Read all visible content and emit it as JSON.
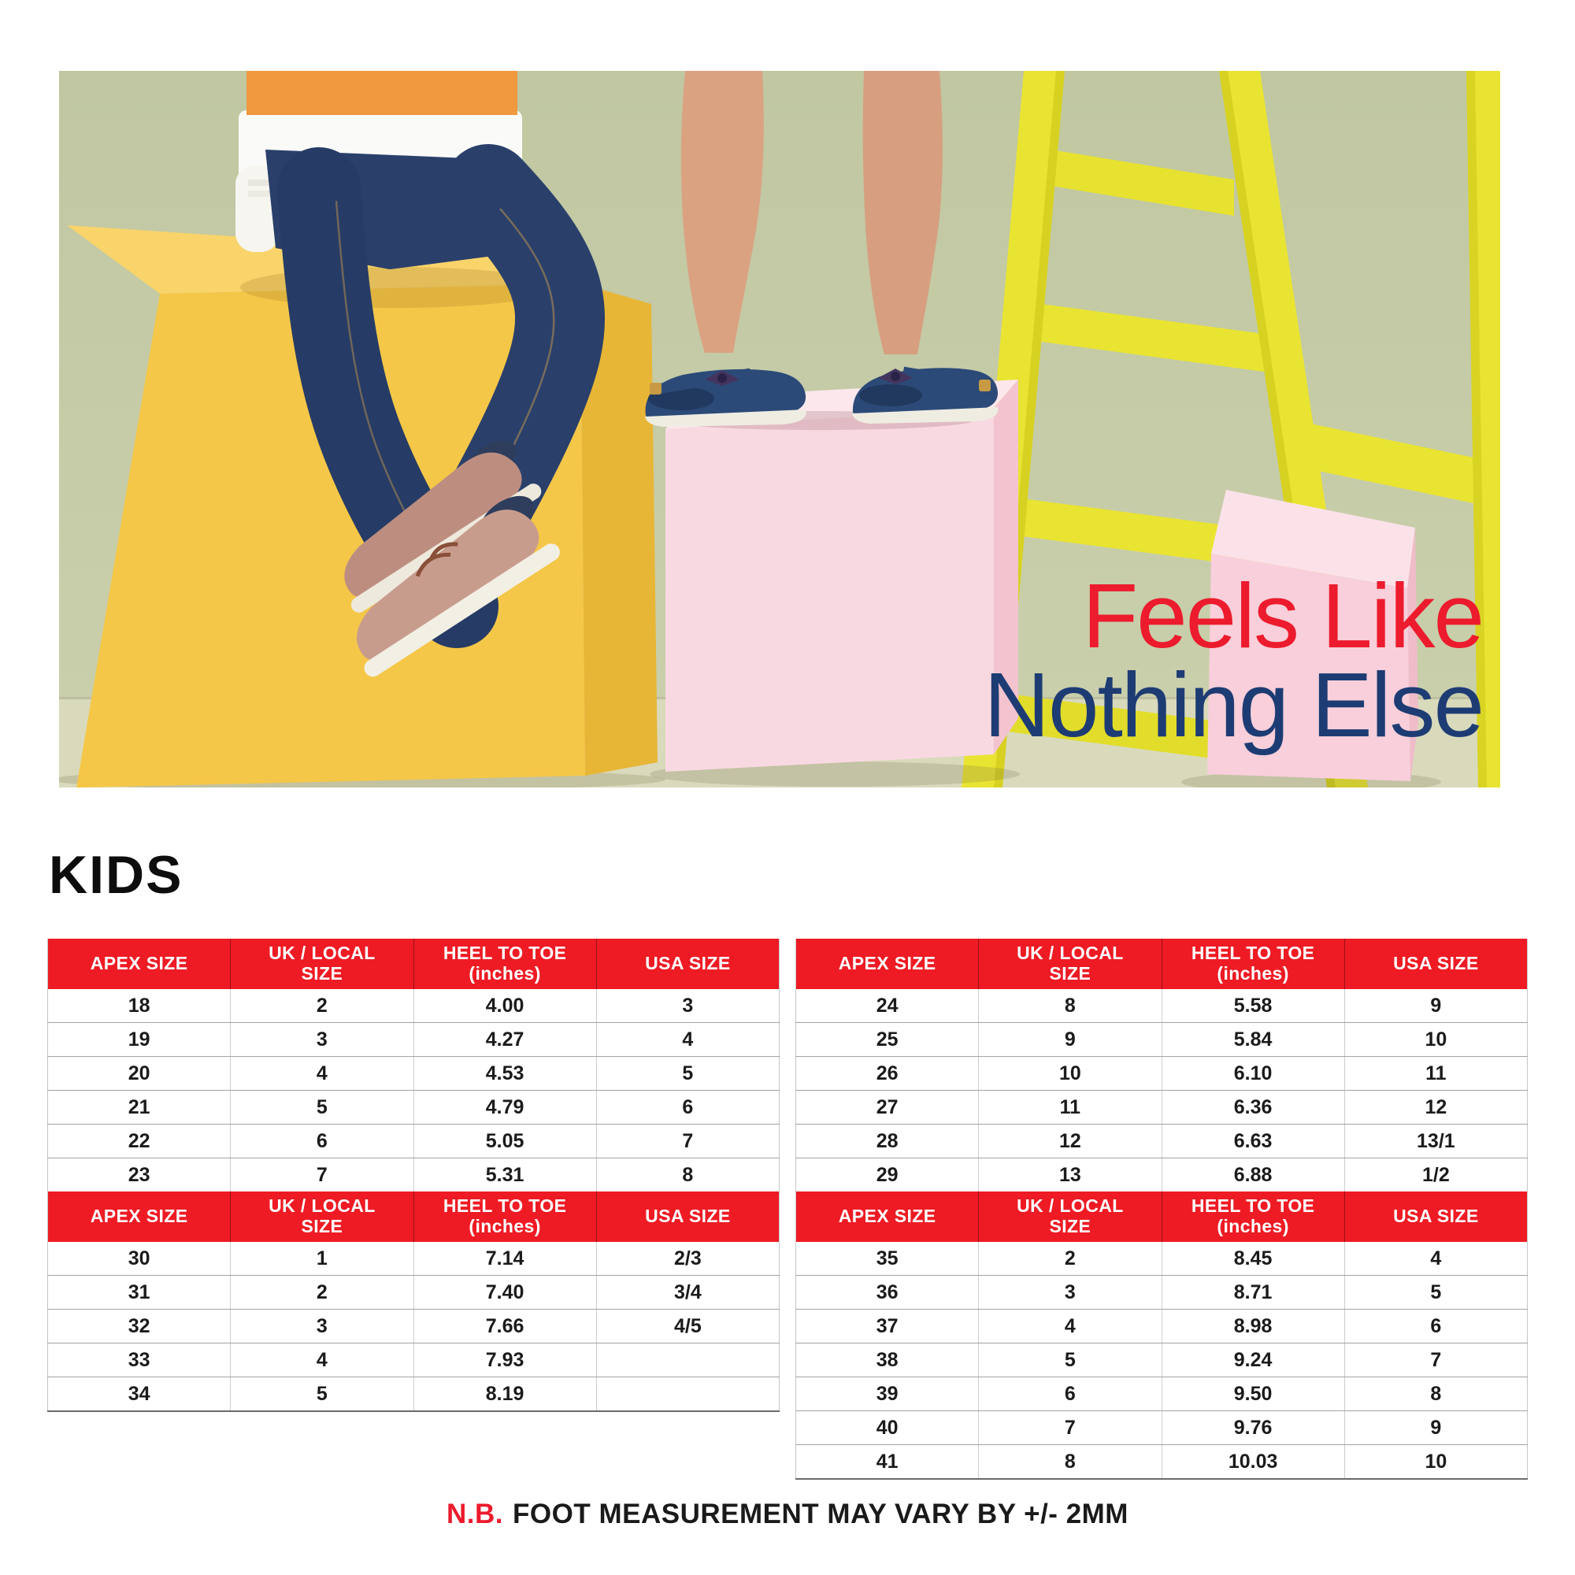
{
  "hero": {
    "headline_line1": "Feels Like",
    "headline_line2": "Nothing Else"
  },
  "section_title": "KIDS",
  "table_headers": [
    {
      "line1": "APEX SIZE",
      "line2": ""
    },
    {
      "line1": "UK / LOCAL",
      "line2": "SIZE"
    },
    {
      "line1": "HEEL TO TOE",
      "line2": "(inches)"
    },
    {
      "line1": "USA SIZE",
      "line2": ""
    }
  ],
  "tables": [
    {
      "name": "kids-table-1",
      "rows": [
        [
          "18",
          "2",
          "4.00",
          "3"
        ],
        [
          "19",
          "3",
          "4.27",
          "4"
        ],
        [
          "20",
          "4",
          "4.53",
          "5"
        ],
        [
          "21",
          "5",
          "4.79",
          "6"
        ],
        [
          "22",
          "6",
          "5.05",
          "7"
        ],
        [
          "23",
          "7",
          "5.31",
          "8"
        ]
      ]
    },
    {
      "name": "kids-table-2",
      "rows": [
        [
          "24",
          "8",
          "5.58",
          "9"
        ],
        [
          "25",
          "9",
          "5.84",
          "10"
        ],
        [
          "26",
          "10",
          "6.10",
          "11"
        ],
        [
          "27",
          "11",
          "6.36",
          "12"
        ],
        [
          "28",
          "12",
          "6.63",
          "13/1"
        ],
        [
          "29",
          "13",
          "6.88",
          "1/2"
        ]
      ]
    },
    {
      "name": "kids-table-3",
      "rows": [
        [
          "30",
          "1",
          "7.14",
          "2/3"
        ],
        [
          "31",
          "2",
          "7.40",
          "3/4"
        ],
        [
          "32",
          "3",
          "7.66",
          "4/5"
        ],
        [
          "33",
          "4",
          "7.93",
          ""
        ],
        [
          "34",
          "5",
          "8.19",
          ""
        ]
      ]
    },
    {
      "name": "kids-table-4",
      "rows": [
        [
          "35",
          "2",
          "8.45",
          "4"
        ],
        [
          "36",
          "3",
          "8.71",
          "5"
        ],
        [
          "37",
          "4",
          "8.98",
          "6"
        ],
        [
          "38",
          "5",
          "9.24",
          "7"
        ],
        [
          "39",
          "6",
          "9.50",
          "8"
        ],
        [
          "40",
          "7",
          "9.76",
          "9"
        ],
        [
          "41",
          "8",
          "10.03",
          "10"
        ]
      ]
    }
  ],
  "footnote": {
    "prefix": "N.B.",
    "text": "FOOT MEASUREMENT MAY VARY BY +/- 2MM"
  },
  "colors": {
    "header_red": "#EE1B24",
    "accent_red": "#EC1B2D",
    "navy": "#1E3C74",
    "cube_yellow": "#F3C342",
    "ladder_yellow": "#E9E432",
    "pedestal_pink": "#F9D9E1",
    "sage_green": "#C2C9A3"
  }
}
